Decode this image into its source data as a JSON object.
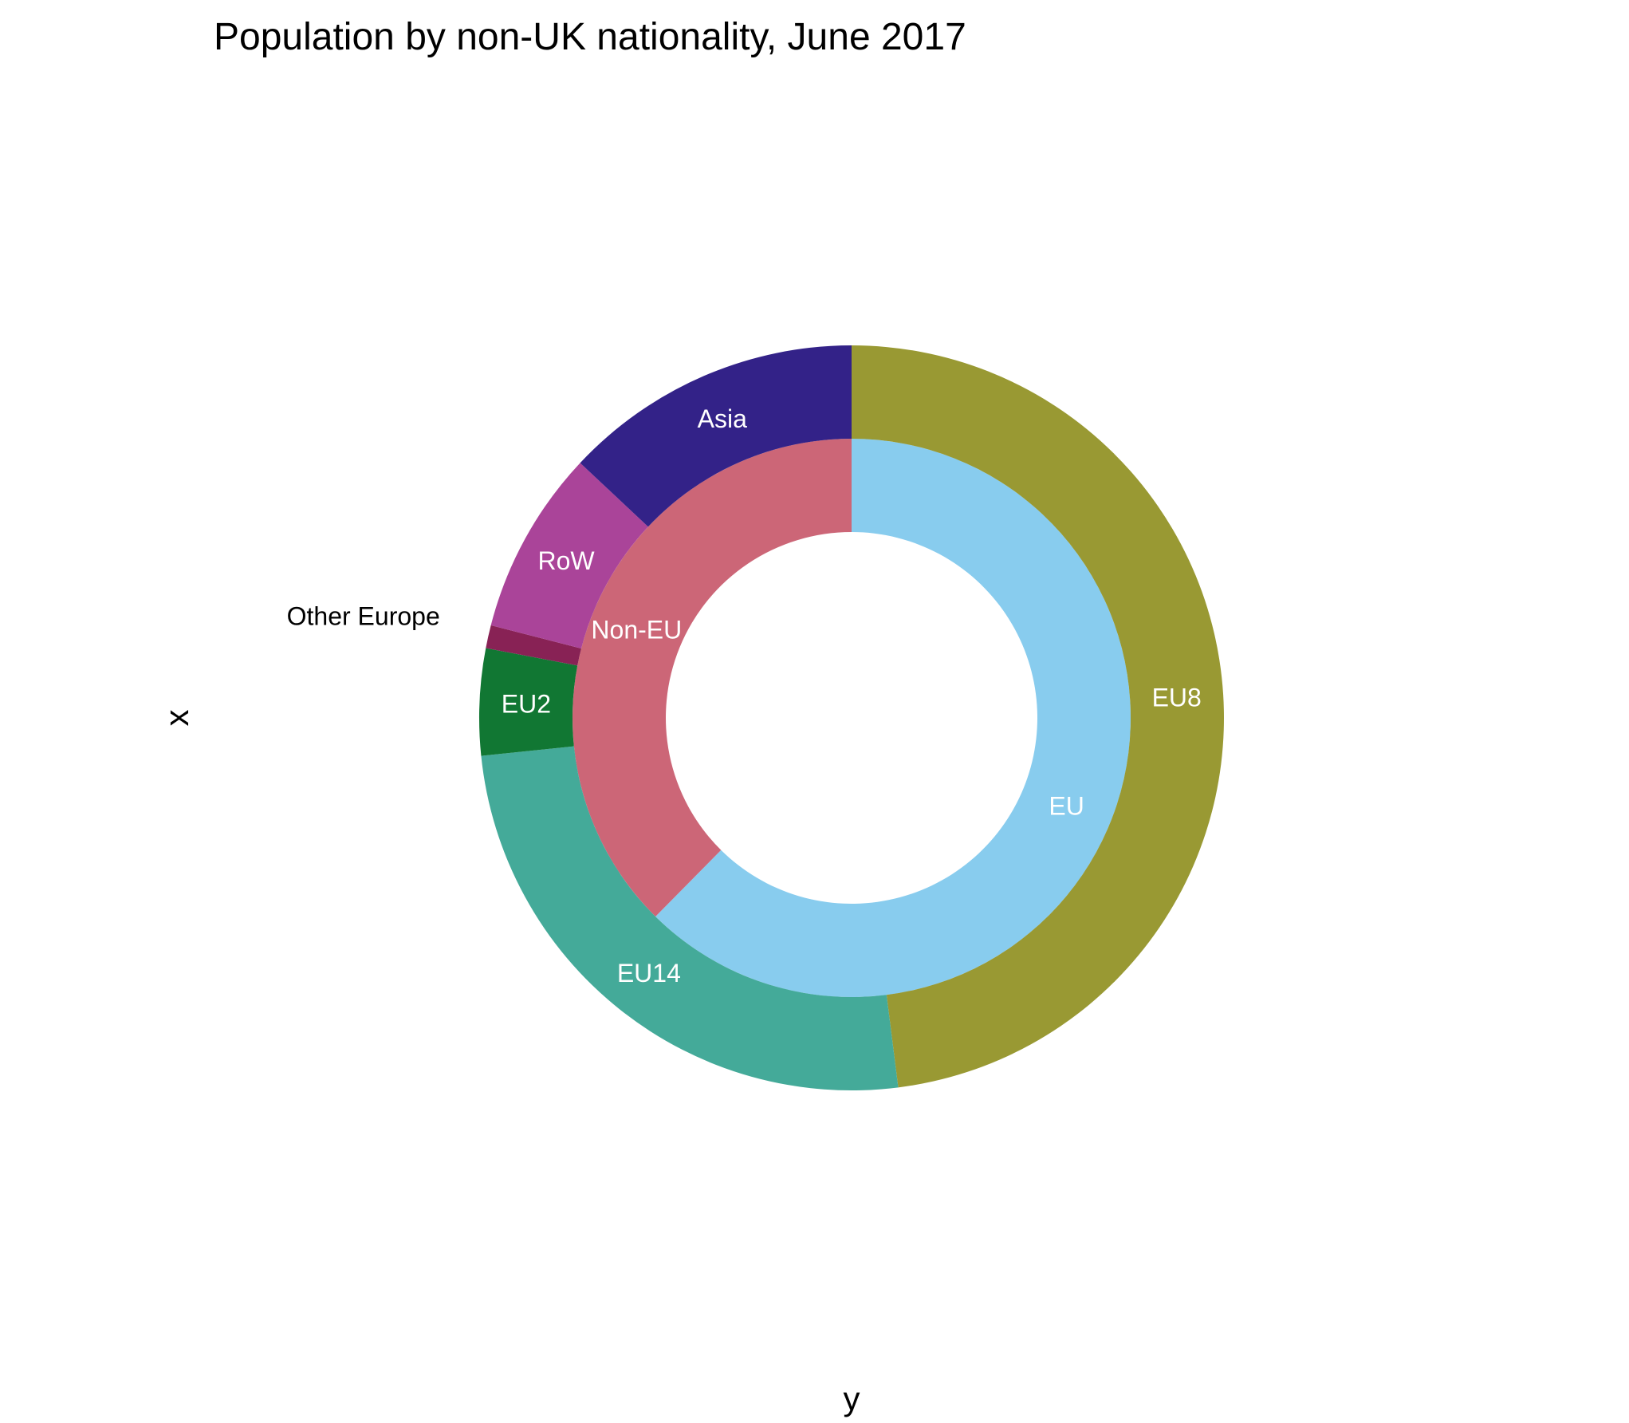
{
  "chart_data": {
    "type": "donut",
    "title": "Population by non-UK nationality, June 2017",
    "xlabel": "y",
    "ylabel": "x",
    "rings": [
      {
        "ring": "inner",
        "segments": [
          {
            "label": "EU",
            "value": 62.4,
            "color": "#88CCEE",
            "label_color": "#ffffff"
          },
          {
            "label": "Non-EU",
            "value": 37.6,
            "color": "#CC6677",
            "label_color": "#ffffff"
          }
        ]
      },
      {
        "ring": "outer",
        "segments": [
          {
            "label": "EU8",
            "value": 38.4,
            "color": "#999933",
            "label_color": "#ffffff"
          },
          {
            "label": "EU14",
            "value": 20.3,
            "color": "#44AA99",
            "label_color": "#ffffff"
          },
          {
            "label": "EU2",
            "value": 3.7,
            "color": "#117733",
            "label_color": "#ffffff"
          },
          {
            "label": "Other Europe",
            "value": 0.8,
            "color": "#882255",
            "label_color": "#000000"
          },
          {
            "label": "RoW",
            "value": 6.4,
            "color": "#AA4499",
            "label_color": "#ffffff"
          },
          {
            "label": "Asia",
            "value": 10.4,
            "color": "#332288",
            "label_color": "#ffffff"
          }
        ]
      }
    ]
  }
}
